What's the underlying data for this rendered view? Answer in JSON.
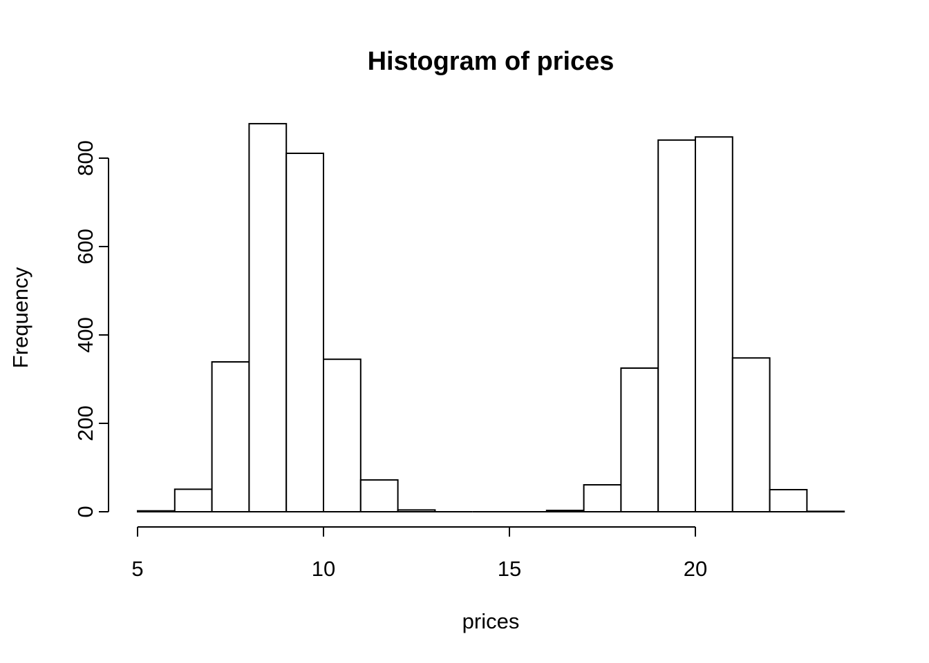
{
  "page": {
    "background_color": "#ffffff",
    "foreground_color": "#000000"
  },
  "chart_data": {
    "type": "bar",
    "chart_kind": "histogram",
    "title": "Histogram of prices",
    "xlabel": "prices",
    "ylabel": "Frequency",
    "bin_edges": [
      5,
      6,
      7,
      8,
      9,
      10,
      11,
      12,
      13,
      14,
      15,
      16,
      17,
      18,
      19,
      20,
      21,
      22,
      23,
      24
    ],
    "values": [
      2,
      51,
      339,
      878,
      811,
      345,
      72,
      4,
      0,
      0,
      0,
      3,
      61,
      325,
      841,
      848,
      348,
      50,
      1
    ],
    "x_ticks": [
      5,
      10,
      15,
      20
    ],
    "y_ticks": [
      0,
      200,
      400,
      600,
      800
    ],
    "xlim": [
      5,
      24
    ],
    "ylim": [
      0,
      880
    ],
    "grid": false,
    "legend": "none",
    "bar_fill": "#ffffff",
    "stroke_color": "#000000",
    "background": "#ffffff"
  }
}
